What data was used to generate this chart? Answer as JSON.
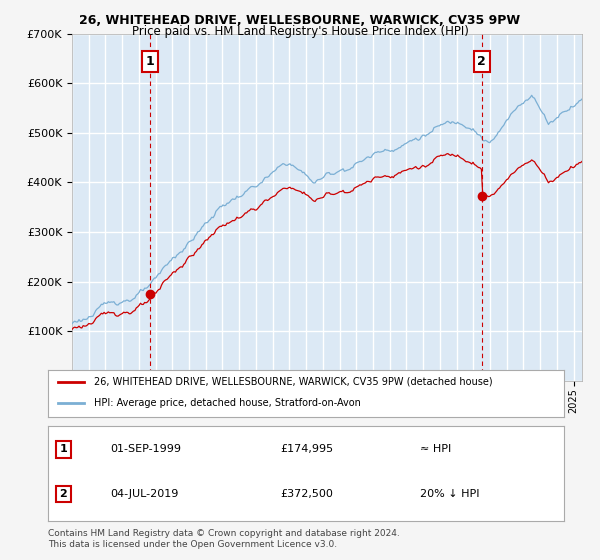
{
  "title1": "26, WHITEHEAD DRIVE, WELLESBOURNE, WARWICK, CV35 9PW",
  "title2": "Price paid vs. HM Land Registry's House Price Index (HPI)",
  "legend_red": "26, WHITEHEAD DRIVE, WELLESBOURNE, WARWICK, CV35 9PW (detached house)",
  "legend_blue": "HPI: Average price, detached house, Stratford-on-Avon",
  "annotation1_label": "1",
  "annotation1_date": "01-SEP-1999",
  "annotation1_price": "£174,995",
  "annotation1_hpi": "≈ HPI",
  "annotation2_label": "2",
  "annotation2_date": "04-JUL-2019",
  "annotation2_price": "£372,500",
  "annotation2_hpi": "20% ↓ HPI",
  "footer": "Contains HM Land Registry data © Crown copyright and database right 2024.\nThis data is licensed under the Open Government Licence v3.0.",
  "bg_color": "#dce9f5",
  "grid_color": "#ffffff",
  "hpi_color": "#7bafd4",
  "price_color": "#cc0000",
  "point_color": "#cc0000",
  "vline_color": "#cc0000",
  "box_color": "#cc0000",
  "ylim": [
    0,
    700000
  ],
  "xlim_start": 1995.0,
  "xlim_end": 2025.5,
  "sale1_x": 1999.67,
  "sale1_y": 174995,
  "sale2_x": 2019.5,
  "sale2_y": 372500
}
